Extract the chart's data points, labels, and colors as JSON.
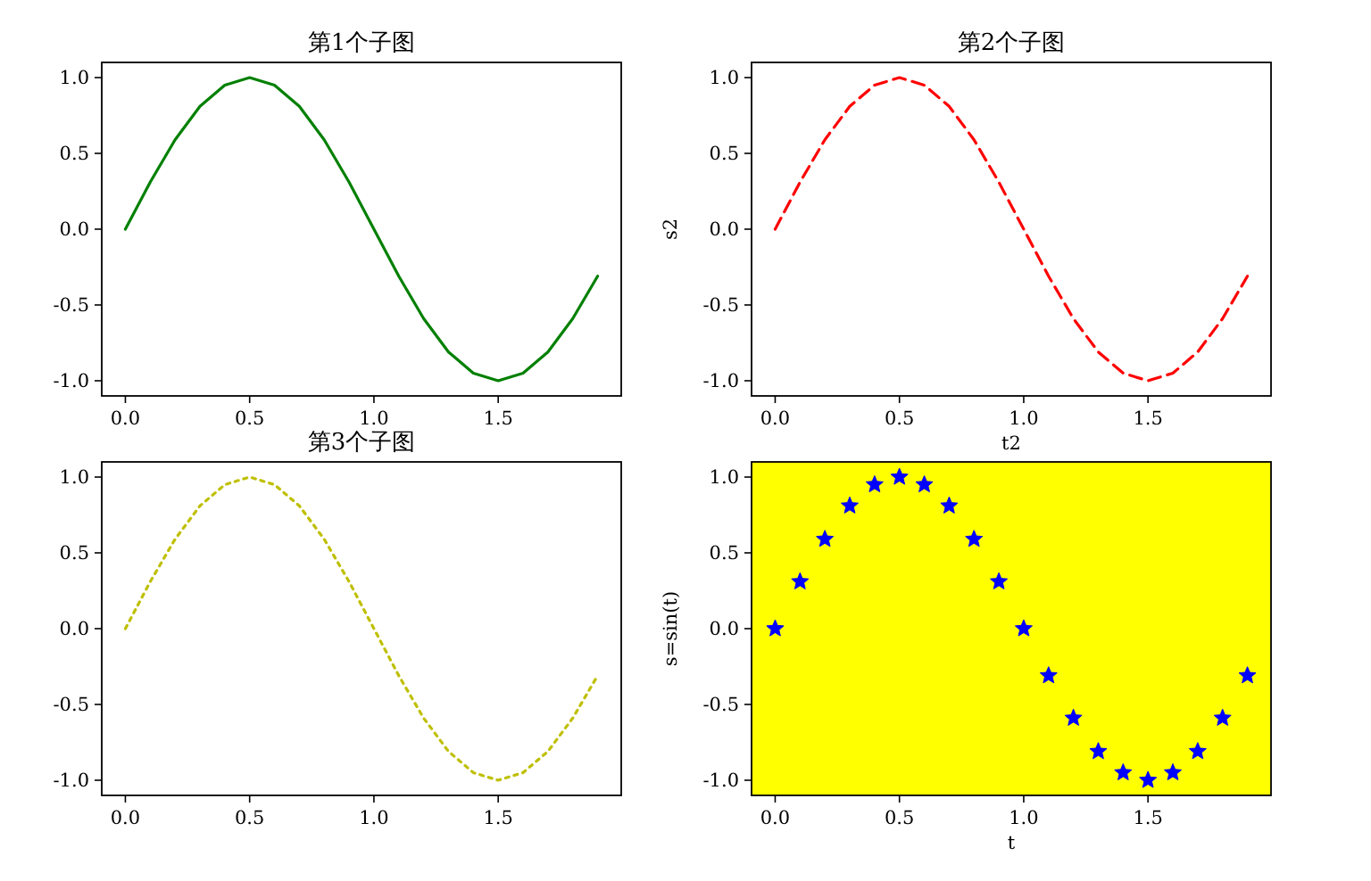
{
  "chart_data": [
    {
      "type": "line",
      "title": "第1个子图",
      "x": [
        0,
        0.1,
        0.2,
        0.3,
        0.4,
        0.5,
        0.6,
        0.7,
        0.8,
        0.9,
        1.0,
        1.1,
        1.2,
        1.3,
        1.4,
        1.5,
        1.6,
        1.7,
        1.8,
        1.9
      ],
      "series": [
        {
          "color": "#008000",
          "values": [
            0,
            0.31,
            0.59,
            0.81,
            0.95,
            1,
            0.95,
            0.81,
            0.59,
            0.31,
            0,
            -0.31,
            -0.59,
            -0.81,
            -0.95,
            -1,
            -0.95,
            -0.81,
            -0.59,
            -0.31
          ]
        }
      ],
      "line_style": "solid",
      "marker": "none",
      "xlim": [
        -0.095,
        1.995
      ],
      "ylim": [
        -1.1,
        1.1
      ],
      "xticks": [
        {
          "value": 0,
          "label": "0.0"
        },
        {
          "value": 0.5,
          "label": "0.5"
        },
        {
          "value": 1,
          "label": "1.0"
        },
        {
          "value": 1.5,
          "label": "1.5"
        }
      ],
      "yticks": [
        {
          "value": -1,
          "label": "-1.0"
        },
        {
          "value": -0.5,
          "label": "-0.5"
        },
        {
          "value": 0,
          "label": "0.0"
        },
        {
          "value": 0.5,
          "label": "0.5"
        },
        {
          "value": 1,
          "label": "1.0"
        }
      ]
    },
    {
      "type": "line",
      "title": "第2个子图",
      "xlabel": "t2",
      "ylabel": "s2",
      "x": [
        0,
        0.1,
        0.2,
        0.3,
        0.4,
        0.5,
        0.6,
        0.7,
        0.8,
        0.9,
        1.0,
        1.1,
        1.2,
        1.3,
        1.4,
        1.5,
        1.6,
        1.7,
        1.8,
        1.9
      ],
      "series": [
        {
          "color": "#ff0000",
          "values": [
            0,
            0.31,
            0.59,
            0.81,
            0.95,
            1,
            0.95,
            0.81,
            0.59,
            0.31,
            0,
            -0.31,
            -0.59,
            -0.81,
            -0.95,
            -1,
            -0.95,
            -0.81,
            -0.59,
            -0.31
          ]
        }
      ],
      "line_style": "dashed",
      "marker": "none",
      "xlim": [
        -0.095,
        1.995
      ],
      "ylim": [
        -1.1,
        1.1
      ],
      "xticks": [
        {
          "value": 0,
          "label": "0.0"
        },
        {
          "value": 0.5,
          "label": "0.5"
        },
        {
          "value": 1,
          "label": "1.0"
        },
        {
          "value": 1.5,
          "label": "1.5"
        }
      ],
      "yticks": [
        {
          "value": -1,
          "label": "-1.0"
        },
        {
          "value": -0.5,
          "label": "-0.5"
        },
        {
          "value": 0,
          "label": "0.0"
        },
        {
          "value": 0.5,
          "label": "0.5"
        },
        {
          "value": 1,
          "label": "1.0"
        }
      ]
    },
    {
      "type": "line",
      "title": "第3个子图",
      "x": [
        0,
        0.1,
        0.2,
        0.3,
        0.4,
        0.5,
        0.6,
        0.7,
        0.8,
        0.9,
        1.0,
        1.1,
        1.2,
        1.3,
        1.4,
        1.5,
        1.6,
        1.7,
        1.8,
        1.9
      ],
      "series": [
        {
          "color": "#bfbf00",
          "values": [
            0,
            0.31,
            0.59,
            0.81,
            0.95,
            1,
            0.95,
            0.81,
            0.59,
            0.31,
            0,
            -0.31,
            -0.59,
            -0.81,
            -0.95,
            -1,
            -0.95,
            -0.81,
            -0.59,
            -0.31
          ]
        }
      ],
      "line_style": "dotted",
      "marker": "none",
      "xlim": [
        -0.095,
        1.995
      ],
      "ylim": [
        -1.1,
        1.1
      ],
      "xticks": [
        {
          "value": 0,
          "label": "0.0"
        },
        {
          "value": 0.5,
          "label": "0.5"
        },
        {
          "value": 1,
          "label": "1.0"
        },
        {
          "value": 1.5,
          "label": "1.5"
        }
      ],
      "yticks": [
        {
          "value": -1,
          "label": "-1.0"
        },
        {
          "value": -0.5,
          "label": "-0.5"
        },
        {
          "value": 0,
          "label": "0.0"
        },
        {
          "value": 0.5,
          "label": "0.5"
        },
        {
          "value": 1,
          "label": "1.0"
        }
      ]
    },
    {
      "type": "scatter",
      "xlabel": "t",
      "ylabel": "s=sin(t)",
      "x": [
        0,
        0.1,
        0.2,
        0.3,
        0.4,
        0.5,
        0.6,
        0.7,
        0.8,
        0.9,
        1.0,
        1.1,
        1.2,
        1.3,
        1.4,
        1.5,
        1.6,
        1.7,
        1.8,
        1.9
      ],
      "series": [
        {
          "color": "#0000ff",
          "values": [
            0,
            0.31,
            0.59,
            0.81,
            0.95,
            1,
            0.95,
            0.81,
            0.59,
            0.31,
            0,
            -0.31,
            -0.59,
            -0.81,
            -0.95,
            -1,
            -0.95,
            -0.81,
            -0.59,
            -0.31
          ]
        }
      ],
      "marker": "star",
      "xlim": [
        -0.095,
        1.995
      ],
      "ylim": [
        -1.1,
        1.1
      ],
      "bands": [
        {
          "axis": "x",
          "from": -0.095,
          "to": 1.995,
          "color": "#ffff00"
        }
      ],
      "xticks": [
        {
          "value": 0,
          "label": "0.0"
        },
        {
          "value": 0.5,
          "label": "0.5"
        },
        {
          "value": 1,
          "label": "1.0"
        },
        {
          "value": 1.5,
          "label": "1.5"
        }
      ],
      "yticks": [
        {
          "value": -1,
          "label": "-1.0"
        },
        {
          "value": -0.5,
          "label": "-0.5"
        },
        {
          "value": 0,
          "label": "0.0"
        },
        {
          "value": 0.5,
          "label": "0.5"
        },
        {
          "value": 1,
          "label": "1.0"
        }
      ]
    }
  ]
}
